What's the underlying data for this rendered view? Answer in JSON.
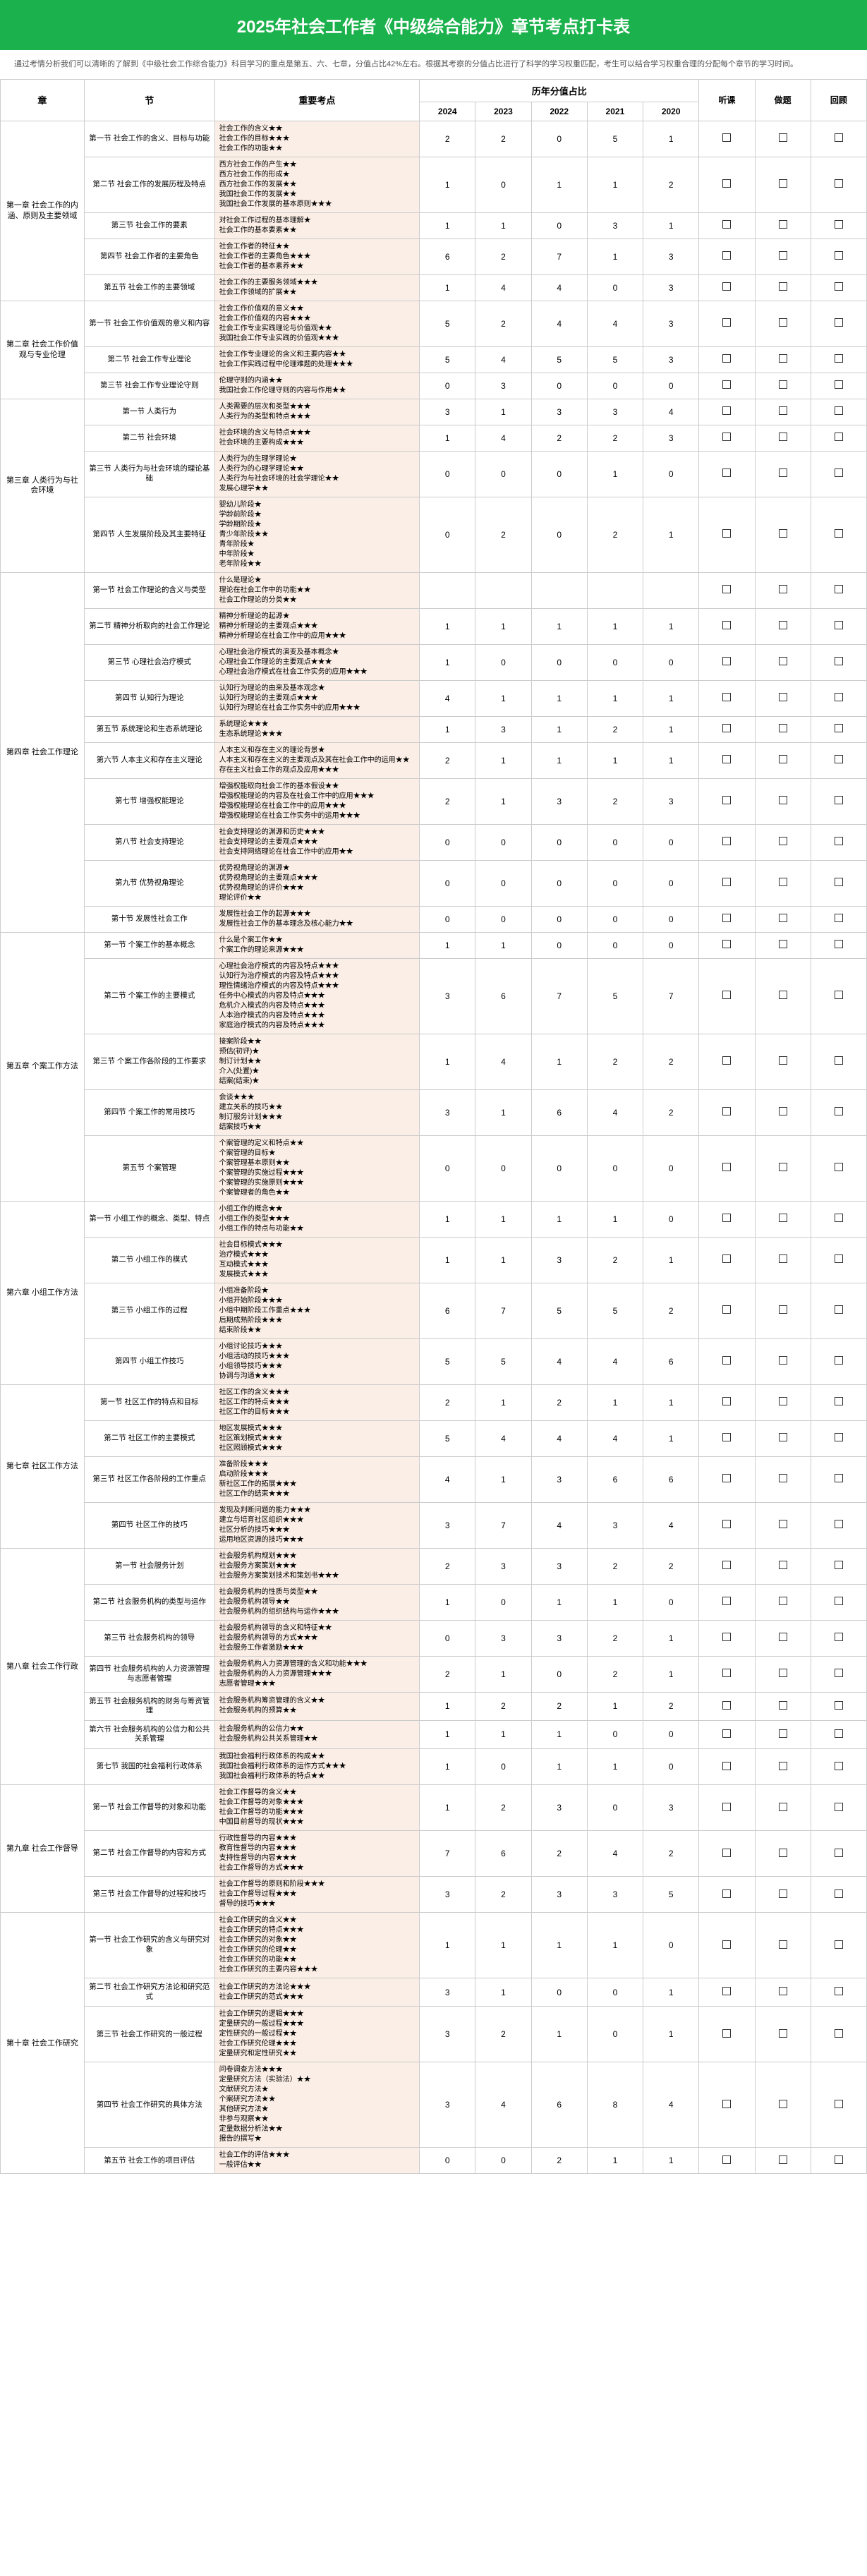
{
  "title": "2025年社会工作者《中级综合能力》章节考点打卡表",
  "intro": "通过考情分析我们可以清晰的了解到《中级社会工作综合能力》科目学习的重点是第五、六、七章，分值占比42%左右。根据其考察的分值占比进行了科学的学习权重匹配，考生可以结合学习权重合理的分配每个章节的学习时间。",
  "cols": {
    "chapter": "章",
    "section": "节",
    "keypoints": "重要考点",
    "years_header": "历年分值占比",
    "years": [
      "2024",
      "2023",
      "2022",
      "2021",
      "2020"
    ],
    "checks": [
      "听课",
      "做题",
      "回顾"
    ]
  },
  "checkbox_glyph": "□",
  "chapters": [
    {
      "name": "第一章 社会工作的内涵、原则及主要领域",
      "sections": [
        {
          "name": "第一节 社会工作的含义、目标与功能",
          "kps": [
            "社会工作的含义★★",
            "社会工作的目标★★★",
            "社会工作的功能★★"
          ],
          "scores": [
            2,
            2,
            0,
            5,
            1
          ]
        },
        {
          "name": "第二节 社会工作的发展历程及特点",
          "kps": [
            "西方社会工作的产生★★",
            "西方社会工作的形成★",
            "西方社会工作的发展★★",
            "我国社会工作的发展★★",
            "我国社会工作发展的基本原则★★★"
          ],
          "scores": [
            1,
            0,
            1,
            1,
            2
          ]
        },
        {
          "name": "第三节 社会工作的要素",
          "kps": [
            "对社会工作过程的基本理解★",
            "社会工作的基本要素★★"
          ],
          "scores": [
            1,
            1,
            0,
            3,
            1
          ]
        },
        {
          "name": "第四节 社会工作者的主要角色",
          "kps": [
            "社会工作者的特征★★",
            "社会工作者的主要角色★★★",
            "社会工作者的基本素养★★"
          ],
          "scores": [
            6,
            2,
            7,
            1,
            3
          ]
        },
        {
          "name": "第五节 社会工作的主要领域",
          "kps": [
            "社会工作的主要服务领域★★★",
            "社会工作领域的扩展★★"
          ],
          "scores": [
            1,
            4,
            4,
            0,
            3
          ]
        }
      ]
    },
    {
      "name": "第二章 社会工作价值观与专业伦理",
      "sections": [
        {
          "name": "第一节 社会工作价值观的意义和内容",
          "kps": [
            "社会工作价值观的意义★★",
            "社会工作价值观的内容★★★",
            "社会工作专业实践理论与价值观★★",
            "我国社会工作专业实践的价值观★★★"
          ],
          "scores": [
            5,
            2,
            4,
            4,
            3
          ]
        },
        {
          "name": "第二节 社会工作专业理论",
          "kps": [
            "社会工作专业理论的含义和主要内容★★",
            "社会工作实践过程中伦理难题的处理★★★"
          ],
          "scores": [
            5,
            4,
            5,
            5,
            3
          ]
        },
        {
          "name": "第三节 社会工作专业理论守则",
          "kps": [
            "伦理守则的内涵★★",
            "我国社会工作伦理守则的内容与作用★★"
          ],
          "scores": [
            0,
            3,
            0,
            0,
            0
          ]
        }
      ]
    },
    {
      "name": "第三章 人类行为与社会环境",
      "sections": [
        {
          "name": "第一节 人类行为",
          "kps": [
            "人类需要的层次和类型★★★",
            "人类行为的类型和特点★★★"
          ],
          "scores": [
            3,
            1,
            3,
            3,
            4
          ]
        },
        {
          "name": "第二节 社会环境",
          "kps": [
            "社会环境的含义与特点★★★",
            "社会环境的主要构成★★★"
          ],
          "scores": [
            1,
            4,
            2,
            2,
            3
          ]
        },
        {
          "name": "第三节 人类行为与社会环境的理论基础",
          "kps": [
            "人类行为的生理学理论★",
            "人类行为的心理学理论★★",
            "人类行为与社会环境的社会学理论★★",
            "发展心理学★★"
          ],
          "scores": [
            0,
            0,
            0,
            1,
            0
          ]
        },
        {
          "name": "第四节 人生发展阶段及其主要特征",
          "kps": [
            "婴幼儿阶段★",
            "学龄前阶段★",
            "学龄期阶段★",
            "青少年阶段★★",
            "青年阶段★",
            "中年阶段★",
            "老年阶段★★"
          ],
          "scores": [
            0,
            2,
            0,
            2,
            1
          ]
        }
      ]
    },
    {
      "name": "第四章 社会工作理论",
      "sections": [
        {
          "name": "第一节 社会工作理论的含义与类型",
          "kps": [
            "什么是理论★",
            "理论在社会工作中的功能★★",
            "社会工作理论的分类★★"
          ],
          "scores": [
            "",
            "",
            "",
            "",
            ""
          ]
        },
        {
          "name": "第二节 精神分析取向的社会工作理论",
          "kps": [
            "精神分析理论的起源★",
            "精神分析理论的主要观点★★★",
            "精神分析理论在社会工作中的应用★★★"
          ],
          "scores": [
            1,
            1,
            1,
            1,
            1
          ]
        },
        {
          "name": "第三节 心理社会治疗模式",
          "kps": [
            "心理社会治疗模式的演变及基本概念★",
            "心理社会工作理论的主要观点★★★",
            "心理社会治疗模式在社会工作实务的应用★★★"
          ],
          "scores": [
            1,
            0,
            0,
            0,
            0
          ]
        },
        {
          "name": "第四节 认知行为理论",
          "kps": [
            "认知行为理论的由来及基本观念★",
            "认知行为理论的主要观点★★★",
            "认知行为理论在社会工作实务中的应用★★★"
          ],
          "scores": [
            4,
            1,
            1,
            1,
            1
          ]
        },
        {
          "name": "第五节 系统理论和生态系统理论",
          "kps": [
            "系统理论★★★",
            "生态系统理论★★★"
          ],
          "scores": [
            1,
            3,
            1,
            2,
            1
          ]
        },
        {
          "name": "第六节 人本主义和存在主义理论",
          "kps": [
            "人本主义和存在主义的理论背景★",
            "人本主义和存在主义的主要观点及其在社会工作中的运用★★",
            "存在主义社会工作的观点及应用★★★"
          ],
          "scores": [
            2,
            1,
            1,
            1,
            1
          ]
        },
        {
          "name": "第七节 增强权能理论",
          "kps": [
            "增强权能取向社会工作的基本假设★★",
            "增强权能理论的内容及在社会工作中的应用★★★",
            "增强权能理论在社会工作中的应用★★★",
            "增强权能理论在社会工作实务中的运用★★★"
          ],
          "scores": [
            2,
            1,
            3,
            2,
            3
          ]
        },
        {
          "name": "第八节 社会支持理论",
          "kps": [
            "社会支持理论的渊源和历史★★★",
            "社会支持理论的主要观点★★★",
            "社会支持网络理论在社会工作中的应用★★"
          ],
          "scores": [
            0,
            0,
            0,
            0,
            0
          ]
        },
        {
          "name": "第九节 优势视角理论",
          "kps": [
            "优势视角理论的渊源★",
            "优势视角理论的主要观点★★★",
            "优势视角理论的评价★★★",
            "理论评价★★"
          ],
          "scores": [
            0,
            0,
            0,
            0,
            0
          ]
        },
        {
          "name": "第十节 发展性社会工作",
          "kps": [
            "发展性社会工作的起源★★★",
            "发展性社会工作的基本理念及核心能力★★"
          ],
          "scores": [
            0,
            0,
            0,
            0,
            0
          ]
        }
      ]
    },
    {
      "name": "第五章 个案工作方法",
      "sections": [
        {
          "name": "第一节 个案工作的基本概念",
          "kps": [
            "什么是个案工作★★",
            "个案工作的理论来源★★★"
          ],
          "scores": [
            1,
            1,
            0,
            0,
            0
          ]
        },
        {
          "name": "第二节 个案工作的主要模式",
          "kps": [
            "心理社会治疗模式的内容及特点★★★",
            "认知行为治疗模式的内容及特点★★★",
            "理性情绪治疗模式的内容及特点★★★",
            "任务中心模式的内容及特点★★★",
            "危机介入模式的内容及特点★★★",
            "人本治疗模式的内容及特点★★★",
            "家庭治疗模式的内容及特点★★★"
          ],
          "scores": [
            3,
            6,
            7,
            5,
            7
          ]
        },
        {
          "name": "第三节 个案工作各阶段的工作要求",
          "kps": [
            "接案阶段★★",
            "预估(初评)★",
            "制订计划★★",
            "介入(处置)★",
            "结案(结束)★"
          ],
          "scores": [
            1,
            4,
            1,
            2,
            2
          ]
        },
        {
          "name": "第四节 个案工作的常用技巧",
          "kps": [
            "会谈★★★",
            "建立关系的技巧★★",
            "制订服务计划★★★",
            "结案技巧★★"
          ],
          "scores": [
            3,
            1,
            6,
            4,
            2
          ]
        },
        {
          "name": "第五节 个案管理",
          "kps": [
            "个案管理的定义和特点★★",
            "个案管理的目标★",
            "个案管理基本原则★★",
            "个案管理的实施过程★★★",
            "个案管理的实施原则★★★",
            "个案管理者的角色★★"
          ],
          "scores": [
            0,
            0,
            0,
            0,
            0
          ]
        }
      ]
    },
    {
      "name": "第六章 小组工作方法",
      "sections": [
        {
          "name": "第一节 小组工作的概念、类型、特点",
          "kps": [
            "小组工作的概念★★",
            "小组工作的类型★★★",
            "小组工作的特点与功能★★"
          ],
          "scores": [
            1,
            1,
            1,
            1,
            0
          ]
        },
        {
          "name": "第二节 小组工作的模式",
          "kps": [
            "社会目标模式★★★",
            "治疗模式★★★",
            "互动模式★★★",
            "发展模式★★★"
          ],
          "scores": [
            1,
            1,
            3,
            2,
            1
          ]
        },
        {
          "name": "第三节 小组工作的过程",
          "kps": [
            "小组准备阶段★",
            "小组开始阶段★★★",
            "小组中期阶段工作重点★★★",
            "后期成熟阶段★★★",
            "结束阶段★★"
          ],
          "scores": [
            6,
            7,
            5,
            5,
            2
          ]
        },
        {
          "name": "第四节 小组工作技巧",
          "kps": [
            "小组讨论技巧★★★",
            "小组活动的技巧★★★",
            "小组领导技巧★★★",
            "协调与沟通★★★"
          ],
          "scores": [
            5,
            5,
            4,
            4,
            6
          ]
        }
      ]
    },
    {
      "name": "第七章 社区工作方法",
      "sections": [
        {
          "name": "第一节 社区工作的特点和目标",
          "kps": [
            "社区工作的含义★★★",
            "社区工作的特点★★★",
            "社区工作的目标★★★"
          ],
          "scores": [
            2,
            1,
            2,
            1,
            1
          ]
        },
        {
          "name": "第二节 社区工作的主要模式",
          "kps": [
            "地区发展模式★★★",
            "社区策划模式★★★",
            "社区照顾模式★★★"
          ],
          "scores": [
            5,
            4,
            4,
            4,
            1
          ]
        },
        {
          "name": "第三节 社区工作各阶段的工作重点",
          "kps": [
            "准备阶段★★★",
            "启动阶段★★★",
            "新社区工作的拓展★★★",
            "社区工作的结束★★★"
          ],
          "scores": [
            4,
            1,
            3,
            6,
            6
          ]
        },
        {
          "name": "第四节 社区工作的技巧",
          "kps": [
            "发现及判断问题的能力★★★",
            "建立与培育社区组织★★★",
            "社区分析的技巧★★★",
            "运用地区资源的技巧★★★"
          ],
          "scores": [
            3,
            7,
            4,
            3,
            4
          ]
        }
      ]
    },
    {
      "name": "第八章 社会工作行政",
      "sections": [
        {
          "name": "第一节 社会服务计划",
          "kps": [
            "社会服务机构规划★★★",
            "社会服务方案策划★★★",
            "社会服务方案策划技术和策划书★★★"
          ],
          "scores": [
            2,
            3,
            3,
            2,
            2
          ]
        },
        {
          "name": "第二节 社会服务机构的类型与运作",
          "kps": [
            "社会服务机构的性质与类型★★",
            "社会服务机构领导★★",
            "社会服务机构的组织结构与运作★★★"
          ],
          "scores": [
            1,
            0,
            1,
            1,
            0
          ]
        },
        {
          "name": "第三节 社会服务机构的领导",
          "kps": [
            "社会服务机构领导的含义和特征★★",
            "社会服务机构领导的方式★★★",
            "社会服务工作者激励★★★"
          ],
          "scores": [
            0,
            3,
            3,
            2,
            1
          ]
        },
        {
          "name": "第四节 社会服务机构的人力资源管理与志愿者管理",
          "kps": [
            "社会服务机构人力资源管理的含义和功能★★★",
            "社会服务机构的人力资源管理★★★",
            "志愿者管理★★★"
          ],
          "scores": [
            2,
            1,
            0,
            2,
            1
          ]
        },
        {
          "name": "第五节 社会服务机构的财务与筹资管理",
          "kps": [
            "社会服务机构筹资管理的含义★★",
            "社会服务机构的预算★★"
          ],
          "scores": [
            1,
            2,
            2,
            1,
            2
          ]
        },
        {
          "name": "第六节 社会服务机构的公信力和公共关系管理",
          "kps": [
            "社会服务机构的公信力★★",
            "社会服务机构公共关系管理★★"
          ],
          "scores": [
            1,
            1,
            1,
            0,
            0
          ]
        },
        {
          "name": "第七节 我国的社会福利行政体系",
          "kps": [
            "我国社会福利行政体系的构成★★",
            "我国社会福利行政体系的运作方式★★★",
            "我国社会福利行政体系的特点★★"
          ],
          "scores": [
            1,
            0,
            1,
            1,
            0
          ]
        }
      ]
    },
    {
      "name": "第九章 社会工作督导",
      "sections": [
        {
          "name": "第一节 社会工作督导的对象和功能",
          "kps": [
            "社会工作督导的含义★★",
            "社会工作督导的对象★★★",
            "社会工作督导的功能★★★",
            "中国目前督导的现状★★★"
          ],
          "scores": [
            1,
            2,
            3,
            0,
            3
          ]
        },
        {
          "name": "第二节 社会工作督导的内容和方式",
          "kps": [
            "行政性督导的内容★★★",
            "教育性督导的内容★★★",
            "支持性督导的内容★★★",
            "社会工作督导的方式★★★"
          ],
          "scores": [
            7,
            6,
            2,
            4,
            2
          ]
        },
        {
          "name": "第三节 社会工作督导的过程和技巧",
          "kps": [
            "社会工作督导的原则和阶段★★★",
            "社会工作督导过程★★★",
            "督导的技巧★★★"
          ],
          "scores": [
            3,
            2,
            3,
            3,
            5
          ]
        }
      ]
    },
    {
      "name": "第十章 社会工作研究",
      "sections": [
        {
          "name": "第一节 社会工作研究的含义与研究对象",
          "kps": [
            "社会工作研究的含义★★",
            "社会工作研究的特点★★★",
            "社会工作研究的对象★★",
            "社会工作研究的伦理★★",
            "社会工作研究的功能★★",
            "社会工作研究的主要内容★★★"
          ],
          "scores": [
            1,
            1,
            1,
            1,
            0
          ]
        },
        {
          "name": "第二节 社会工作研究方法论和研究范式",
          "kps": [
            "社会工作研究的方法论★★★",
            "社会工作研究的范式★★★"
          ],
          "scores": [
            3,
            1,
            0,
            0,
            1
          ]
        },
        {
          "name": "第三节 社会工作研究的一般过程",
          "kps": [
            "社会工作研究的逻辑★★★",
            "定量研究的一般过程★★★",
            "定性研究的一般过程★★",
            "社会工作研究伦理★★★",
            "定量研究和定性研究★★"
          ],
          "scores": [
            3,
            2,
            1,
            0,
            1
          ]
        },
        {
          "name": "第四节 社会工作研究的具体方法",
          "kps": [
            "问卷调查方法★★★",
            "定量研究方法（实验法）★★",
            "文献研究方法★",
            "个案研究方法★★",
            "其他研究方法★",
            "非参与观察★★",
            "定量数据分析法★★",
            "报告的撰写★"
          ],
          "scores": [
            3,
            4,
            6,
            8,
            4
          ]
        },
        {
          "name": "第五节 社会工作的项目评估",
          "kps": [
            "社会工作的评估★★★",
            "一般评估★★"
          ],
          "scores": [
            0,
            0,
            2,
            1,
            1
          ]
        }
      ]
    }
  ]
}
